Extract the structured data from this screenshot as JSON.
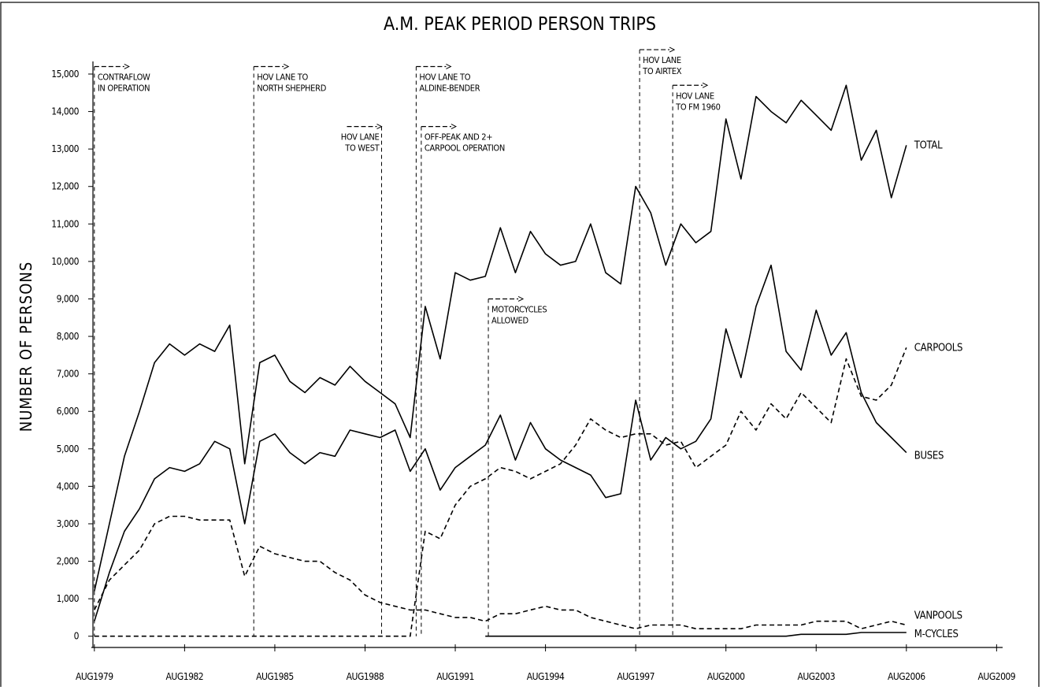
{
  "chart_data": {
    "type": "line",
    "title": "A.M. PEAK PERIOD PERSON TRIPS",
    "y_label": "NUMBER OF PERSONS",
    "xlim": [
      1979.5,
      2009.8
    ],
    "ylim": [
      -300,
      15000
    ],
    "xticks": [
      {
        "value": 1979.6,
        "label": "AUG1979"
      },
      {
        "value": 1982.6,
        "label": "AUG1982"
      },
      {
        "value": 1985.6,
        "label": "AUG1985"
      },
      {
        "value": 1988.6,
        "label": "AUG1988"
      },
      {
        "value": 1991.6,
        "label": "AUG1991"
      },
      {
        "value": 1994.6,
        "label": "AUG1994"
      },
      {
        "value": 1997.6,
        "label": "AUG1997"
      },
      {
        "value": 2000.6,
        "label": "AUG2000"
      },
      {
        "value": 2003.6,
        "label": "AUG2003"
      },
      {
        "value": 2006.6,
        "label": "AUG2006"
      },
      {
        "value": 2009.6,
        "label": "AUG2009"
      }
    ],
    "yticks": [
      0,
      {
        "value": 1000,
        "label": "1,000"
      },
      {
        "value": 2000,
        "label": "2,000"
      },
      {
        "value": 3000,
        "label": "3,000"
      },
      {
        "value": 4000,
        "label": "4,000"
      },
      {
        "value": 5000,
        "label": "5,000"
      },
      {
        "value": 6000,
        "label": "6,000"
      },
      {
        "value": 7000,
        "label": "7,000"
      },
      {
        "value": 8000,
        "label": "8,000"
      },
      {
        "value": 9000,
        "label": "9,000"
      },
      {
        "value": 10000,
        "label": "10,000"
      },
      {
        "value": 11000,
        "label": "11,000"
      },
      {
        "value": 12000,
        "label": "12,000"
      },
      {
        "value": 13000,
        "label": "13,000"
      },
      {
        "value": 14000,
        "label": "14,000"
      },
      {
        "value": 15000,
        "label": "15,000"
      }
    ],
    "x": [
      1979.6,
      1980.1,
      1980.6,
      1981.1,
      1981.6,
      1982.1,
      1982.6,
      1983.1,
      1983.6,
      1984.1,
      1984.6,
      1985.1,
      1985.6,
      1986.1,
      1986.6,
      1987.1,
      1987.6,
      1988.1,
      1988.6,
      1989.1,
      1989.6,
      1990.1,
      1990.6,
      1991.1,
      1991.6,
      1992.1,
      1992.6,
      1993.1,
      1993.6,
      1994.1,
      1994.6,
      1995.1,
      1995.6,
      1996.1,
      1996.6,
      1997.1,
      1997.6,
      1998.1,
      1998.6,
      1999.1,
      1999.6,
      2000.1,
      2000.6,
      2001.1,
      2001.6,
      2002.1,
      2002.6,
      2003.1,
      2003.6,
      2004.1,
      2004.6,
      2005.1,
      2005.6,
      2006.1,
      2006.6
    ],
    "series": [
      {
        "name": "TOTAL",
        "color": "#000000",
        "dashed": false,
        "values": [
          1200,
          3000,
          4800,
          6000,
          7300,
          7800,
          7500,
          7800,
          7600,
          8300,
          4600,
          7300,
          7500,
          6800,
          6500,
          6900,
          6700,
          7200,
          6800,
          6500,
          6200,
          5300,
          8800,
          7400,
          9700,
          9500,
          9600,
          10900,
          9700,
          10800,
          10200,
          9900,
          10000,
          11000,
          9700,
          9400,
          12000,
          11300,
          9900,
          11000,
          10500,
          10800,
          13800,
          12200,
          14400,
          14000,
          13700,
          14300,
          13900,
          13500,
          14700,
          12700,
          13500,
          11700,
          13100
        ]
      },
      {
        "name": "CARPOOLS",
        "color": "#000000",
        "dashed": true,
        "values": [
          0,
          0,
          0,
          0,
          0,
          0,
          0,
          0,
          0,
          0,
          0,
          0,
          0,
          0,
          0,
          0,
          0,
          0,
          0,
          0,
          0,
          0,
          2800,
          2600,
          3500,
          4000,
          4200,
          4500,
          4400,
          4200,
          4400,
          4600,
          5100,
          5800,
          5500,
          5300,
          5400,
          5400,
          5100,
          5200,
          4500,
          4800,
          5100,
          6000,
          5500,
          6200,
          5800,
          6500,
          6100,
          5700,
          7400,
          6400,
          6300,
          6700,
          7700
        ]
      },
      {
        "name": "BUSES",
        "color": "#000000",
        "dashed": false,
        "values": [
          400,
          1700,
          2800,
          3400,
          4200,
          4500,
          4400,
          4600,
          5200,
          5000,
          3000,
          5200,
          5400,
          4900,
          4600,
          4900,
          4800,
          5500,
          5400,
          5300,
          5500,
          4400,
          5000,
          3900,
          4500,
          4800,
          5100,
          5900,
          4700,
          5700,
          5000,
          4700,
          4500,
          4300,
          3700,
          3800,
          6300,
          4700,
          5300,
          5000,
          5200,
          5800,
          8200,
          6900,
          8800,
          9900,
          7600,
          7100,
          8700,
          7500,
          8100,
          6500,
          5700,
          5300,
          4900
        ]
      },
      {
        "name": "VANPOOLS",
        "color": "#000000",
        "dashed": true,
        "values": [
          700,
          1500,
          1900,
          2300,
          3000,
          3200,
          3200,
          3100,
          3100,
          3100,
          1600,
          2400,
          2200,
          2100,
          2000,
          2000,
          1700,
          1500,
          1100,
          900,
          800,
          700,
          700,
          600,
          500,
          500,
          400,
          600,
          600,
          700,
          800,
          700,
          700,
          500,
          400,
          300,
          200,
          300,
          300,
          300,
          200,
          200,
          200,
          200,
          300,
          300,
          300,
          300,
          400,
          400,
          400,
          200,
          300,
          400,
          300
        ]
      },
      {
        "name": "M-CYCLES",
        "color": "#000000",
        "dashed": false,
        "values": [
          null,
          null,
          null,
          null,
          null,
          null,
          null,
          null,
          null,
          null,
          null,
          null,
          null,
          null,
          null,
          null,
          null,
          null,
          null,
          null,
          null,
          null,
          null,
          null,
          null,
          null,
          0,
          0,
          0,
          0,
          0,
          0,
          0,
          0,
          0,
          0,
          0,
          0,
          0,
          0,
          0,
          0,
          0,
          0,
          0,
          0,
          0,
          50,
          50,
          50,
          50,
          100,
          100,
          100,
          100
        ]
      }
    ],
    "annotations": [
      {
        "x": 1979.6,
        "y": 15200,
        "side": "right",
        "lines": [
          "CONTRAFLOW",
          "IN OPERATION"
        ]
      },
      {
        "x": 1984.9,
        "y": 15200,
        "side": "right",
        "lines": [
          "HOV LANE TO",
          "NORTH SHEPHERD"
        ]
      },
      {
        "x": 1989.15,
        "y": 13600,
        "side": "left",
        "lines": [
          "HOV LANE",
          "TO WEST"
        ]
      },
      {
        "x": 1990.3,
        "y": 15200,
        "side": "right",
        "lines": [
          "HOV LANE TO",
          "ALDINE-BENDER"
        ]
      },
      {
        "x": 1990.47,
        "y": 13600,
        "side": "right",
        "lines": [
          "OFF-PEAK AND 2+",
          "CARPOOL OPERATION"
        ]
      },
      {
        "x": 1992.7,
        "y": 9000,
        "side": "right",
        "lines": [
          "MOTORCYCLES",
          "ALLOWED"
        ]
      },
      {
        "x": 1997.73,
        "y": 15650,
        "side": "right",
        "lines": [
          "HOV LANE",
          "TO AIRTEX"
        ]
      },
      {
        "x": 1998.83,
        "y": 14700,
        "side": "right",
        "lines": [
          "HOV LANE",
          "TO FM 1960"
        ]
      }
    ]
  }
}
